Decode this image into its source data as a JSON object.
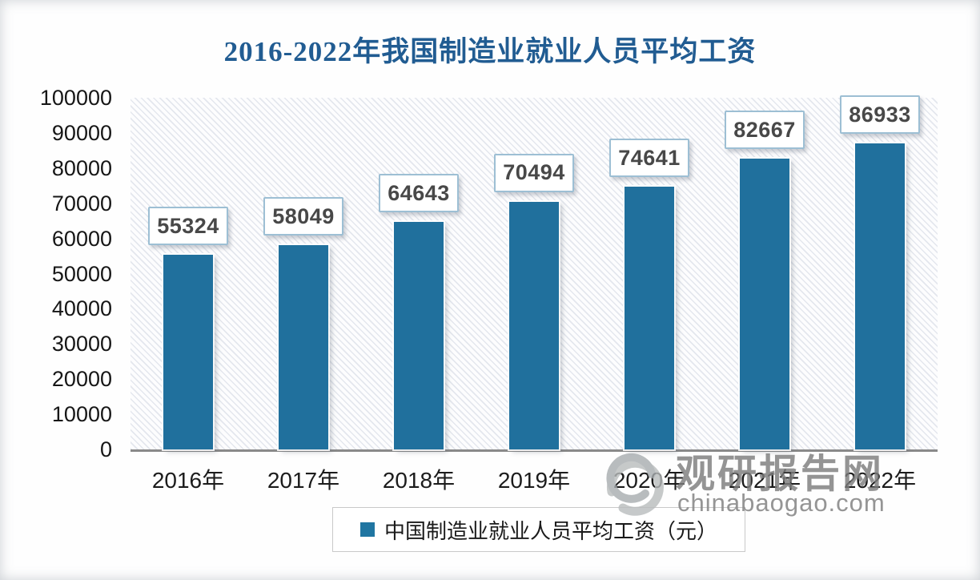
{
  "page_title": "2016-2022年我国制造业就业人员平均工资",
  "chart_data": {
    "type": "bar",
    "title": "2016-2022年我国制造业就业人员平均工资",
    "categories": [
      "2016年",
      "2017年",
      "2018年",
      "2019年",
      "2020年",
      "2021年",
      "2022年"
    ],
    "values": [
      55324,
      58049,
      64643,
      70494,
      74641,
      82667,
      86933
    ],
    "series_name": "中国制造业就业人员平均工资（元）",
    "xlabel": "",
    "ylabel": "",
    "ylim": [
      0,
      100000
    ],
    "ytick_step": 10000,
    "grid": false,
    "legend_position": "bottom",
    "data_labels": true
  },
  "legend": {
    "label": "中国制造业就业人员平均工资（元）"
  },
  "watermark": {
    "site_name": "观研报告网",
    "site_url": "chinabaogao.com",
    "logo": "swirl-logo"
  },
  "colors": {
    "title_text": "#215c92",
    "bar_fill": "#20709d",
    "axis_line": "#8a8a8a",
    "value_text": "#484848",
    "value_box_border": "#9dbfd4",
    "legend_marker": "#2076a2",
    "watermark_gray": "#7d7d7d"
  }
}
